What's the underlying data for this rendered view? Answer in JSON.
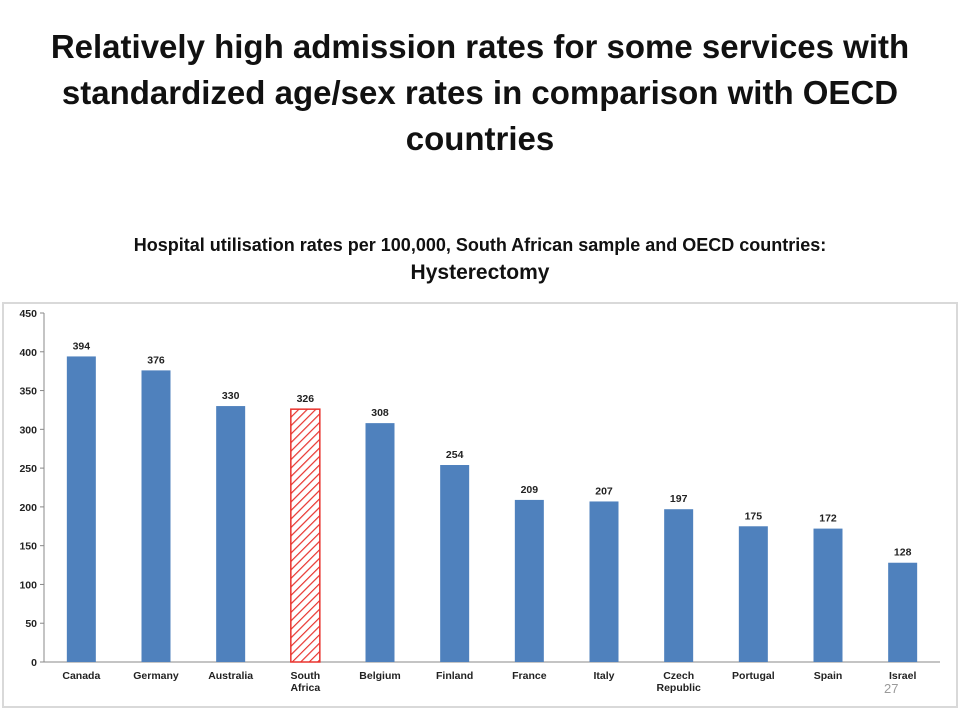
{
  "slide": {
    "title": "Relatively high admission rates for some services with standardized age/sex rates in comparison with OECD countries",
    "page_number": "27"
  },
  "colors": {
    "bar": "#4f81bd",
    "highlight": "#e8332e",
    "frame": "#d9d9d9",
    "axis": "#888888"
  },
  "chart_data": {
    "type": "bar",
    "title_line1": "Hospital utilisation rates per 100,000, South African sample and OECD countries:",
    "title_line2": "Hysterectomy",
    "categories": [
      "Canada",
      "Germany",
      "Australia",
      "South Africa",
      "Belgium",
      "Finland",
      "France",
      "Italy",
      "Czech Republic",
      "Portugal",
      "Spain",
      "Israel"
    ],
    "category_labels": [
      [
        "Canada"
      ],
      [
        "Germany"
      ],
      [
        "Australia"
      ],
      [
        "South",
        "Africa"
      ],
      [
        "Belgium"
      ],
      [
        "Finland"
      ],
      [
        "France"
      ],
      [
        "Italy"
      ],
      [
        "Czech",
        "Republic"
      ],
      [
        "Portugal"
      ],
      [
        "Spain"
      ],
      [
        "Israel"
      ]
    ],
    "values": [
      394,
      376,
      330,
      326,
      308,
      254,
      209,
      207,
      197,
      175,
      172,
      128
    ],
    "highlight_category": "South Africa",
    "highlight_style": "red diagonal hatch",
    "ylim": [
      0,
      450
    ],
    "yticks": [
      0,
      50,
      100,
      150,
      200,
      250,
      300,
      350,
      400,
      450
    ],
    "grid": false,
    "legend": "none",
    "xlabel": "",
    "ylabel": ""
  }
}
